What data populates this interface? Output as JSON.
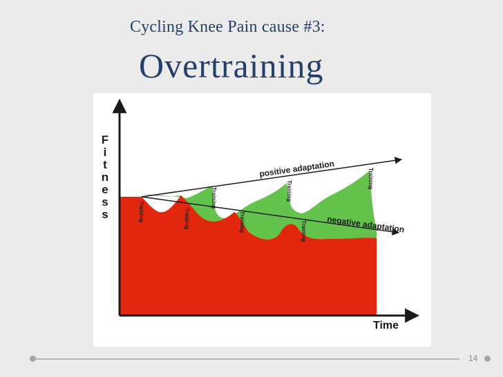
{
  "slide": {
    "subtitle": "Cycling Knee Pain cause #3:",
    "title": "Overtraining",
    "page_number": "14"
  },
  "diagram": {
    "y_axis_label": "Fitness",
    "x_axis_label": "Time",
    "positive_label": "positive adaptation",
    "negative_label": "negative adaptation",
    "training_label": "Training",
    "colors": {
      "red_area": "#e1280e",
      "green_area": "#63c34c",
      "arrow": "#1a1a1a"
    }
  }
}
